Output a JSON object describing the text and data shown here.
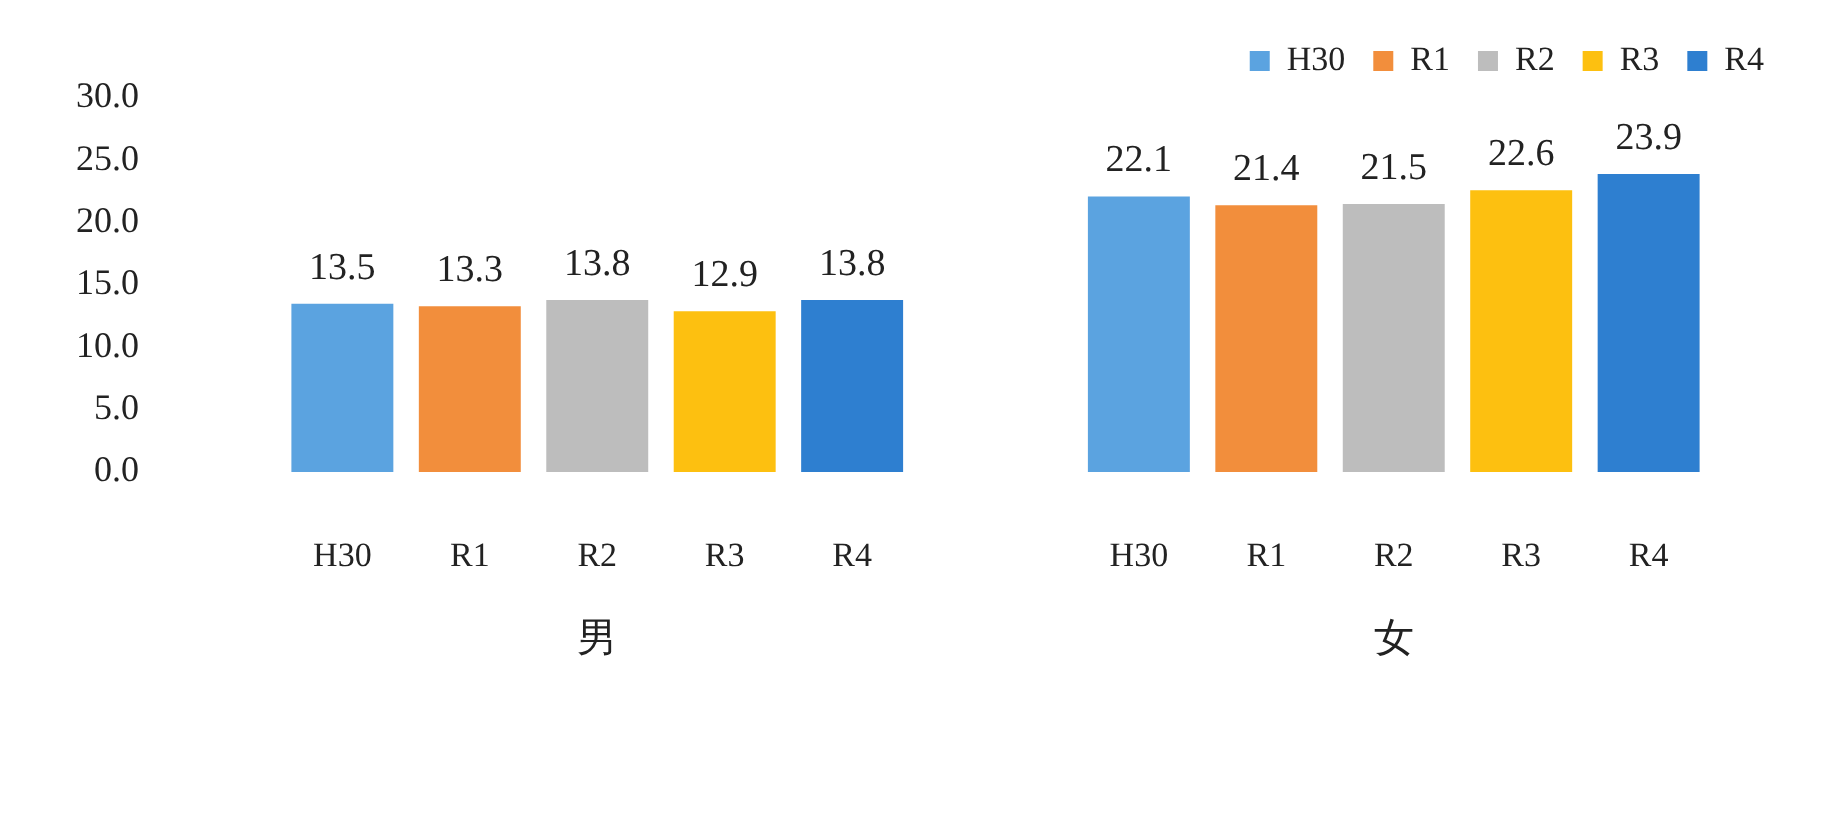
{
  "chart_data": {
    "type": "bar",
    "categories": [
      "男",
      "女"
    ],
    "series": [
      {
        "name": "H30",
        "color": "#5ba3e0",
        "values": [
          13.5,
          22.1
        ]
      },
      {
        "name": "R1",
        "color": "#f28e3c",
        "values": [
          13.3,
          21.4
        ]
      },
      {
        "name": "R2",
        "color": "#bdbdbd",
        "values": [
          13.8,
          21.5
        ]
      },
      {
        "name": "R3",
        "color": "#fdc010",
        "values": [
          12.9,
          22.6
        ]
      },
      {
        "name": "R4",
        "color": "#2e7fd0",
        "values": [
          13.8,
          23.9
        ]
      }
    ],
    "ylim": [
      0,
      30
    ],
    "yticks": [
      {
        "value": 0,
        "label": "0.0"
      },
      {
        "value": 5,
        "label": "5.0"
      },
      {
        "value": 10,
        "label": "10.0"
      },
      {
        "value": 15,
        "label": "15.0"
      },
      {
        "value": 20,
        "label": "20.0"
      },
      {
        "value": 25,
        "label": "25.0"
      },
      {
        "value": 30,
        "label": "30.0"
      }
    ],
    "grid": false,
    "legend": "top right",
    "data_labels": true
  }
}
